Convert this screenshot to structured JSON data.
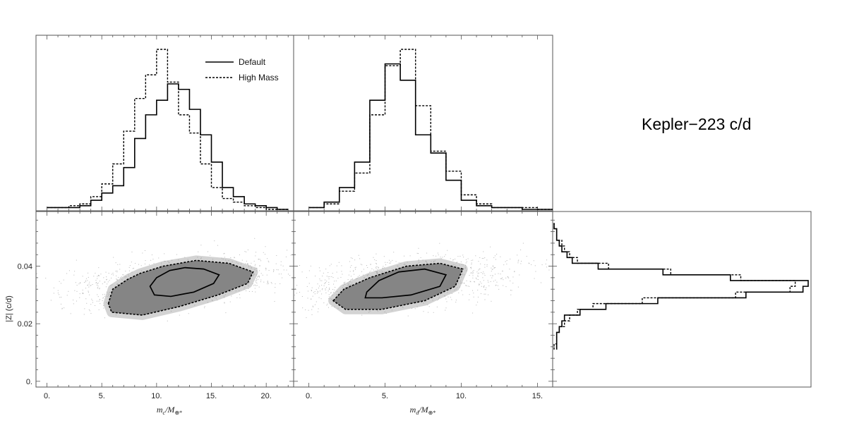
{
  "figure_title": "Kepler−223 c/d",
  "legend": {
    "default_label": "Default",
    "highmass_label": "High Mass"
  },
  "chart_data": [
    {
      "type": "histogram",
      "panel": "mc-marginal",
      "x": [
        0,
        1,
        2,
        3,
        4,
        5,
        6,
        7,
        8,
        9,
        10,
        11,
        12,
        13,
        14,
        15,
        16,
        17,
        18,
        19,
        20,
        21,
        22
      ],
      "series": [
        {
          "name": "Default",
          "style": "solid",
          "values": [
            0.01,
            0.01,
            0.01,
            0.02,
            0.05,
            0.09,
            0.13,
            0.23,
            0.39,
            0.52,
            0.6,
            0.69,
            0.66,
            0.55,
            0.41,
            0.26,
            0.12,
            0.07,
            0.03,
            0.02,
            0.01,
            0.0
          ]
        },
        {
          "name": "High Mass",
          "style": "dashed",
          "values": [
            0.01,
            0.01,
            0.02,
            0.03,
            0.07,
            0.14,
            0.25,
            0.43,
            0.61,
            0.74,
            0.88,
            0.7,
            0.52,
            0.42,
            0.25,
            0.12,
            0.06,
            0.04,
            0.02,
            0.01,
            0.0,
            0.0
          ]
        }
      ],
      "xlim": [
        -1,
        22.5
      ]
    },
    {
      "type": "histogram",
      "panel": "md-marginal",
      "x": [
        0,
        1,
        2,
        3,
        4,
        5,
        6,
        7,
        8,
        9,
        10,
        11,
        12,
        13,
        14,
        15,
        16
      ],
      "series": [
        {
          "name": "Default",
          "style": "solid",
          "values": [
            0.01,
            0.04,
            0.12,
            0.26,
            0.6,
            0.8,
            0.71,
            0.41,
            0.31,
            0.16,
            0.05,
            0.02,
            0.01,
            0.01,
            0.0,
            0.0
          ]
        },
        {
          "name": "High Mass",
          "style": "dashed",
          "values": [
            0.01,
            0.03,
            0.1,
            0.2,
            0.52,
            0.79,
            0.88,
            0.57,
            0.32,
            0.21,
            0.08,
            0.03,
            0.01,
            0.01,
            0.01,
            0.0
          ]
        }
      ],
      "xlim": [
        -1,
        16
      ]
    },
    {
      "type": "scatter",
      "panel": "mc-vs-Z",
      "xlabel_main": "m",
      "xlabel_sub": "c",
      "xlabel_denom": "/M",
      "xlabel_denom_sub": "⊕*",
      "ylabel": "|Z| (c/d)",
      "xlim": [
        -1,
        22.5
      ],
      "ylim": [
        -0.002,
        0.059
      ],
      "xticks": [
        "0.",
        "5.",
        "10.",
        "15.",
        "20."
      ],
      "xtick_values": [
        0,
        5,
        10,
        15,
        20
      ],
      "yticks": [
        "0.",
        "0.02",
        "0.04"
      ],
      "ytick_values": [
        0,
        0.02,
        0.04
      ],
      "density_center": [
        11.8,
        0.0345
      ],
      "contour_68": [
        [
          9.4,
          0.033
        ],
        [
          10.0,
          0.036
        ],
        [
          11.2,
          0.0385
        ],
        [
          12.6,
          0.0395
        ],
        [
          14.3,
          0.039
        ],
        [
          15.7,
          0.037
        ],
        [
          15.2,
          0.034
        ],
        [
          13.4,
          0.031
        ],
        [
          11.3,
          0.0295
        ],
        [
          9.8,
          0.03
        ]
      ],
      "contour_95": [
        [
          5.6,
          0.027
        ],
        [
          6.0,
          0.032
        ],
        [
          7.4,
          0.0355
        ],
        [
          8.5,
          0.0375
        ],
        [
          10.6,
          0.04
        ],
        [
          13.6,
          0.042
        ],
        [
          16.6,
          0.041
        ],
        [
          18.8,
          0.038
        ],
        [
          18.3,
          0.034
        ],
        [
          15.6,
          0.03
        ],
        [
          12.1,
          0.026
        ],
        [
          8.7,
          0.023
        ],
        [
          5.9,
          0.024
        ]
      ]
    },
    {
      "type": "scatter",
      "panel": "md-vs-Z",
      "xlabel_main": "m",
      "xlabel_sub": "d",
      "xlabel_denom": "/M",
      "xlabel_denom_sub": "⊕*",
      "xlim": [
        -1,
        16
      ],
      "ylim": [
        -0.002,
        0.059
      ],
      "xticks": [
        "0.",
        "5.",
        "10.",
        "15."
      ],
      "xtick_values": [
        0,
        5,
        10,
        15
      ],
      "density_center": [
        6.3,
        0.0345
      ],
      "contour_68": [
        [
          3.8,
          0.031
        ],
        [
          4.6,
          0.035
        ],
        [
          5.9,
          0.038
        ],
        [
          7.6,
          0.039
        ],
        [
          9.0,
          0.037
        ],
        [
          8.6,
          0.033
        ],
        [
          6.7,
          0.03
        ],
        [
          4.8,
          0.029
        ],
        [
          3.7,
          0.029
        ]
      ],
      "contour_95": [
        [
          1.6,
          0.028
        ],
        [
          2.3,
          0.032
        ],
        [
          4.0,
          0.036
        ],
        [
          6.4,
          0.04
        ],
        [
          8.6,
          0.041
        ],
        [
          10.1,
          0.039
        ],
        [
          9.6,
          0.033
        ],
        [
          7.6,
          0.028
        ],
        [
          4.8,
          0.025
        ],
        [
          2.4,
          0.025
        ]
      ]
    },
    {
      "type": "histogram",
      "panel": "Z-marginal",
      "orientation": "horizontal",
      "y": [
        0.011,
        0.013,
        0.015,
        0.017,
        0.019,
        0.021,
        0.023,
        0.025,
        0.027,
        0.029,
        0.031,
        0.033,
        0.035,
        0.037,
        0.039,
        0.041,
        0.043,
        0.045,
        0.047,
        0.049,
        0.051,
        0.053,
        0.055
      ],
      "ylim": [
        -0.002,
        0.059
      ],
      "series": [
        {
          "name": "Default",
          "style": "solid",
          "values": [
            0.01,
            0.01,
            0.01,
            0.02,
            0.03,
            0.04,
            0.1,
            0.2,
            0.4,
            0.74,
            0.96,
            0.98,
            0.68,
            0.42,
            0.17,
            0.07,
            0.05,
            0.03,
            0.02,
            0.01,
            0.01,
            0.0
          ]
        },
        {
          "name": "High Mass",
          "style": "dashed",
          "values": [
            0.0,
            0.01,
            0.01,
            0.02,
            0.04,
            0.06,
            0.09,
            0.15,
            0.34,
            0.7,
            0.91,
            0.93,
            0.72,
            0.45,
            0.21,
            0.09,
            0.06,
            0.04,
            0.03,
            0.01,
            0.01,
            0.0
          ]
        }
      ]
    }
  ]
}
